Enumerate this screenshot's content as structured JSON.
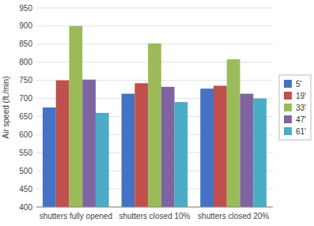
{
  "chart_data": {
    "type": "bar",
    "categories": [
      "shutters fully opened",
      "shutters closed 10%",
      "shutters closed 20%"
    ],
    "series": [
      {
        "name": "5'",
        "color": "#4472C4",
        "values": [
          675,
          713,
          727
        ]
      },
      {
        "name": "19'",
        "color": "#C0504D",
        "values": [
          750,
          742,
          735
        ]
      },
      {
        "name": "33'",
        "color": "#9BBB59",
        "values": [
          900,
          852,
          808
        ]
      },
      {
        "name": "47'",
        "color": "#8064A2",
        "values": [
          752,
          732,
          713
        ]
      },
      {
        "name": "61'",
        "color": "#4BACC6",
        "values": [
          660,
          690,
          700
        ]
      }
    ],
    "ylabel": "Air speed (ft./min)",
    "ylim": [
      400,
      950
    ],
    "yticks": [
      400,
      450,
      500,
      550,
      600,
      650,
      700,
      750,
      800,
      850,
      900,
      950
    ],
    "grid": true,
    "legend": "right"
  }
}
